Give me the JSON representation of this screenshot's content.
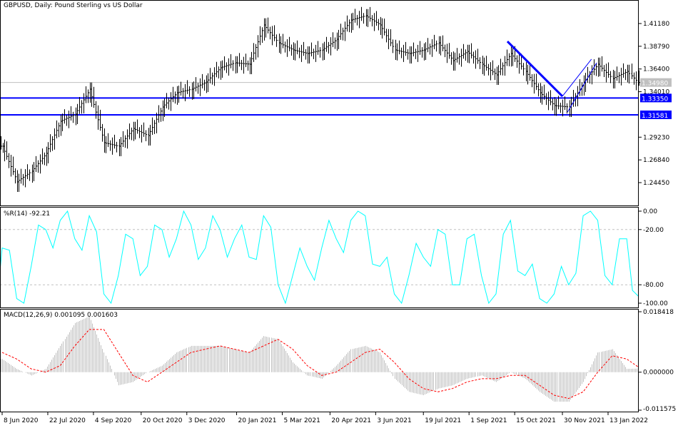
{
  "chart_data": {
    "type": "ohlc-bar",
    "title": "GBPUSD, Daily:  Pound Sterling vs US Dollar",
    "colors": {
      "bars": "#000000",
      "hlines": "#0000ff",
      "trendline": "#0000ff",
      "current_price": "#c0c0c0",
      "wpr": "#00ffff",
      "macd_hist": "#c0c0c0",
      "macd_signal": "#ff0000",
      "levels": "#c0c0c0"
    },
    "x_dates": [
      "2020-06-08",
      "2020-06-22",
      "2020-07-06",
      "2020-07-20",
      "2020-08-03",
      "2020-08-17",
      "2020-08-31",
      "2020-09-14",
      "2020-09-28",
      "2020-10-12",
      "2020-10-26",
      "2020-11-09",
      "2020-11-23",
      "2020-12-07",
      "2020-12-21",
      "2021-01-04",
      "2021-01-18",
      "2021-02-01",
      "2021-02-15",
      "2021-03-01",
      "2021-03-15",
      "2021-03-29",
      "2021-04-12",
      "2021-04-26",
      "2021-05-10",
      "2021-05-24",
      "2021-06-07",
      "2021-06-21",
      "2021-07-05",
      "2021-07-19",
      "2021-08-02",
      "2021-08-16",
      "2021-08-30",
      "2021-09-13",
      "2021-09-27",
      "2021-10-11",
      "2021-10-25",
      "2021-11-08",
      "2021-11-22",
      "2021-12-06",
      "2021-12-20",
      "2022-01-03",
      "2022-01-17",
      "2022-01-31",
      "2022-02-11"
    ],
    "close": [
      1.2828,
      1.2453,
      1.2565,
      1.2753,
      1.309,
      1.3165,
      1.3428,
      1.2865,
      1.2828,
      1.3015,
      1.294,
      1.324,
      1.339,
      1.3428,
      1.3503,
      1.3653,
      1.3705,
      1.369,
      1.4103,
      1.3915,
      1.384,
      1.3803,
      1.384,
      1.3953,
      1.4155,
      1.42,
      1.4103,
      1.384,
      1.3803,
      1.384,
      1.3915,
      1.3728,
      1.3825,
      1.369,
      1.3578,
      1.3803,
      1.3615,
      1.339,
      1.3255,
      1.324,
      1.3503,
      1.369,
      1.354,
      1.3615,
      1.3498
    ],
    "price_axis": {
      "ticks": [
        "1.41180",
        "1.38790",
        "1.36400",
        "1.34010",
        "1.29230",
        "1.26840",
        "1.24450"
      ],
      "range": [
        1.231,
        1.433
      ]
    },
    "current_price": {
      "label": "1.34980",
      "value": 1.3498
    },
    "horizontal_lines": [
      {
        "label": "1.33350",
        "value": 1.3335
      },
      {
        "label": "1.31581",
        "value": 1.31581
      }
    ],
    "trendlines": [
      {
        "from": [
          "2021-10-08",
          1.393
        ],
        "to": [
          "2021-11-30",
          1.3353
        ],
        "thick": true
      },
      {
        "from": [
          "2021-12-05",
          1.3188
        ],
        "to": [
          "2022-01-02",
          1.3705
        ],
        "thick": false
      },
      {
        "from": [
          "2021-11-30",
          1.3353
        ],
        "to": [
          "2021-12-28",
          1.3743
        ],
        "thick": false
      }
    ],
    "x_ticks": [
      {
        "label": "8 Jun 2020",
        "date": "2020-06-08"
      },
      {
        "label": "22 Jul 2020",
        "date": "2020-07-22"
      },
      {
        "label": "4 Sep 2020",
        "date": "2020-09-04"
      },
      {
        "label": "20 Oct 2020",
        "date": "2020-10-20"
      },
      {
        "label": "3 Dec 2020",
        "date": "2020-12-03"
      },
      {
        "label": "20 Jan 2021",
        "date": "2021-01-20"
      },
      {
        "label": "5 Mar 2021",
        "date": "2021-03-05"
      },
      {
        "label": "20 Apr 2021",
        "date": "2021-04-20"
      },
      {
        "label": "3 Jun 2021",
        "date": "2021-06-03"
      },
      {
        "label": "19 Jul 2021",
        "date": "2021-07-19"
      },
      {
        "label": "1 Sep 2021",
        "date": "2021-09-01"
      },
      {
        "label": "15 Oct 2021",
        "date": "2021-10-15"
      },
      {
        "label": "30 Nov 2021",
        "date": "2021-11-30"
      },
      {
        "label": "13 Jan 2022",
        "date": "2022-01-13"
      }
    ],
    "wpr": {
      "label": "%R(14) -92.21",
      "ticks": [
        "0.00",
        "-20.00",
        "-80.00",
        "-100.00"
      ],
      "levels": [
        -20,
        -80
      ],
      "range": [
        -100,
        0
      ],
      "values": [
        -40,
        -95,
        -60,
        -20,
        -10,
        -30,
        -5,
        -90,
        -70,
        -30,
        -60,
        -20,
        -30,
        -15,
        -40,
        -20,
        -30,
        -50,
        -5,
        -80,
        -70,
        -60,
        -40,
        -30,
        -10,
        -5,
        -60,
        -90,
        -70,
        -50,
        -20,
        -80,
        -30,
        -70,
        -90,
        -10,
        -70,
        -95,
        -90,
        -80,
        -5,
        -10,
        -80,
        -30,
        -92.21
      ]
    },
    "macd": {
      "label": "MACD(12,26,9) 0.001095 0.001603",
      "ticks": [
        "0.018418",
        "0.000000",
        "-0.011575"
      ],
      "range": [
        -0.011575,
        0.018418
      ],
      "main": [
        0.004,
        0.001,
        -0.001,
        0.001,
        0.008,
        0.015,
        0.017,
        0.006,
        -0.004,
        -0.003,
        0.0,
        0.002,
        0.006,
        0.008,
        0.008,
        0.008,
        0.007,
        0.006,
        0.011,
        0.01,
        0.003,
        -0.001,
        -0.002,
        0.002,
        0.007,
        0.008,
        0.006,
        -0.002,
        -0.006,
        -0.007,
        -0.005,
        -0.004,
        -0.002,
        -0.001,
        -0.003,
        0.0,
        -0.002,
        -0.006,
        -0.009,
        -0.009,
        -0.003,
        0.006,
        0.007,
        0.001,
        0.001095
      ],
      "signal": [
        0.006,
        0.004,
        0.001,
        0.0,
        0.002,
        0.008,
        0.013,
        0.013,
        0.006,
        -0.001,
        -0.003,
        0.0,
        0.003,
        0.006,
        0.007,
        0.008,
        0.007,
        0.006,
        0.008,
        0.01,
        0.007,
        0.002,
        -0.001,
        0.0,
        0.003,
        0.006,
        0.007,
        0.003,
        -0.002,
        -0.005,
        -0.006,
        -0.005,
        -0.003,
        -0.002,
        -0.002,
        -0.001,
        -0.001,
        -0.004,
        -0.007,
        -0.008,
        -0.006,
        0.0,
        0.005,
        0.004,
        0.001603
      ]
    }
  }
}
